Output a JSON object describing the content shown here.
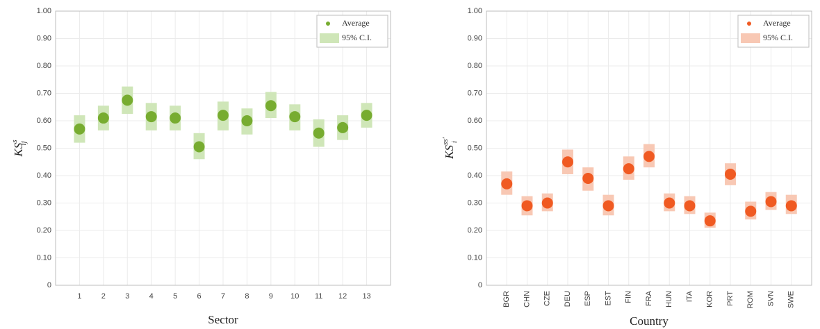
{
  "chart_data": [
    {
      "type": "dot",
      "x_label": "Sector",
      "y_label": {
        "base": "KS",
        "sup": "s",
        "sub": "ij"
      },
      "categories": [
        "1",
        "2",
        "3",
        "4",
        "5",
        "6",
        "7",
        "8",
        "9",
        "10",
        "11",
        "12",
        "13"
      ],
      "series": [
        {
          "name": "Average",
          "color": "#77ac30",
          "values": [
            0.57,
            0.61,
            0.675,
            0.615,
            0.61,
            0.505,
            0.62,
            0.6,
            0.655,
            0.615,
            0.555,
            0.575,
            0.62
          ]
        },
        {
          "name": "95% C.I.",
          "color": "#cfe6b8",
          "lower": [
            0.52,
            0.565,
            0.625,
            0.565,
            0.565,
            0.46,
            0.565,
            0.55,
            0.61,
            0.565,
            0.505,
            0.53,
            0.575
          ],
          "upper": [
            0.62,
            0.655,
            0.725,
            0.665,
            0.655,
            0.555,
            0.67,
            0.645,
            0.705,
            0.66,
            0.605,
            0.62,
            0.665
          ]
        }
      ],
      "ylim": [
        0,
        1
      ],
      "yticks": [
        0,
        {
          "value": 0.1,
          "label": "0.10"
        },
        {
          "value": 0.2,
          "label": "0.20"
        },
        {
          "value": 0.3,
          "label": "0.30"
        },
        {
          "value": 0.4,
          "label": "0.40"
        },
        {
          "value": 0.5,
          "label": "0.50"
        },
        {
          "value": 0.6,
          "label": "0.60"
        },
        {
          "value": 0.7,
          "label": "0.70"
        },
        {
          "value": 0.8,
          "label": "0.80"
        },
        {
          "value": 0.9,
          "label": "0.90"
        },
        {
          "value": 1,
          "label": "1.00"
        }
      ],
      "grid": true,
      "legend": "upper right",
      "rotate_x_labels": false
    },
    {
      "type": "dot",
      "x_label": "Country",
      "y_label": {
        "base": "KS",
        "sup": "ss'",
        "sub": "i"
      },
      "categories": [
        "BGR",
        "CHN",
        "CZE",
        "DEU",
        "ESP",
        "EST",
        "FIN",
        "FRA",
        "HUN",
        "ITA",
        "KOR",
        "PRT",
        "ROM",
        "SVN",
        "SWE"
      ],
      "series": [
        {
          "name": "Average",
          "color": "#f05a22",
          "values": [
            0.37,
            0.29,
            0.3,
            0.45,
            0.39,
            0.29,
            0.425,
            0.47,
            0.3,
            0.29,
            0.235,
            0.405,
            0.27,
            0.305,
            0.29
          ]
        },
        {
          "name": "95% C.I.",
          "color": "#f8c8b4",
          "lower": [
            0.33,
            0.255,
            0.27,
            0.405,
            0.345,
            0.255,
            0.385,
            0.43,
            0.27,
            0.26,
            0.21,
            0.365,
            0.24,
            0.275,
            0.26
          ],
          "upper": [
            0.415,
            0.325,
            0.335,
            0.495,
            0.43,
            0.33,
            0.47,
            0.515,
            0.335,
            0.325,
            0.265,
            0.445,
            0.305,
            0.34,
            0.33
          ]
        }
      ],
      "ylim": [
        0,
        1
      ],
      "yticks": [
        0,
        {
          "value": 0.1,
          "label": "0.10"
        },
        {
          "value": 0.2,
          "label": "0.20"
        },
        {
          "value": 0.3,
          "label": "0.30"
        },
        {
          "value": 0.4,
          "label": "0.40"
        },
        {
          "value": 0.5,
          "label": "0.50"
        },
        {
          "value": 0.6,
          "label": "0.60"
        },
        {
          "value": 0.7,
          "label": "0.70"
        },
        {
          "value": 0.8,
          "label": "0.80"
        },
        {
          "value": 0.9,
          "label": "0.90"
        },
        {
          "value": 1,
          "label": "1.00"
        }
      ],
      "grid": true,
      "legend": "upper right",
      "rotate_x_labels": true
    }
  ]
}
